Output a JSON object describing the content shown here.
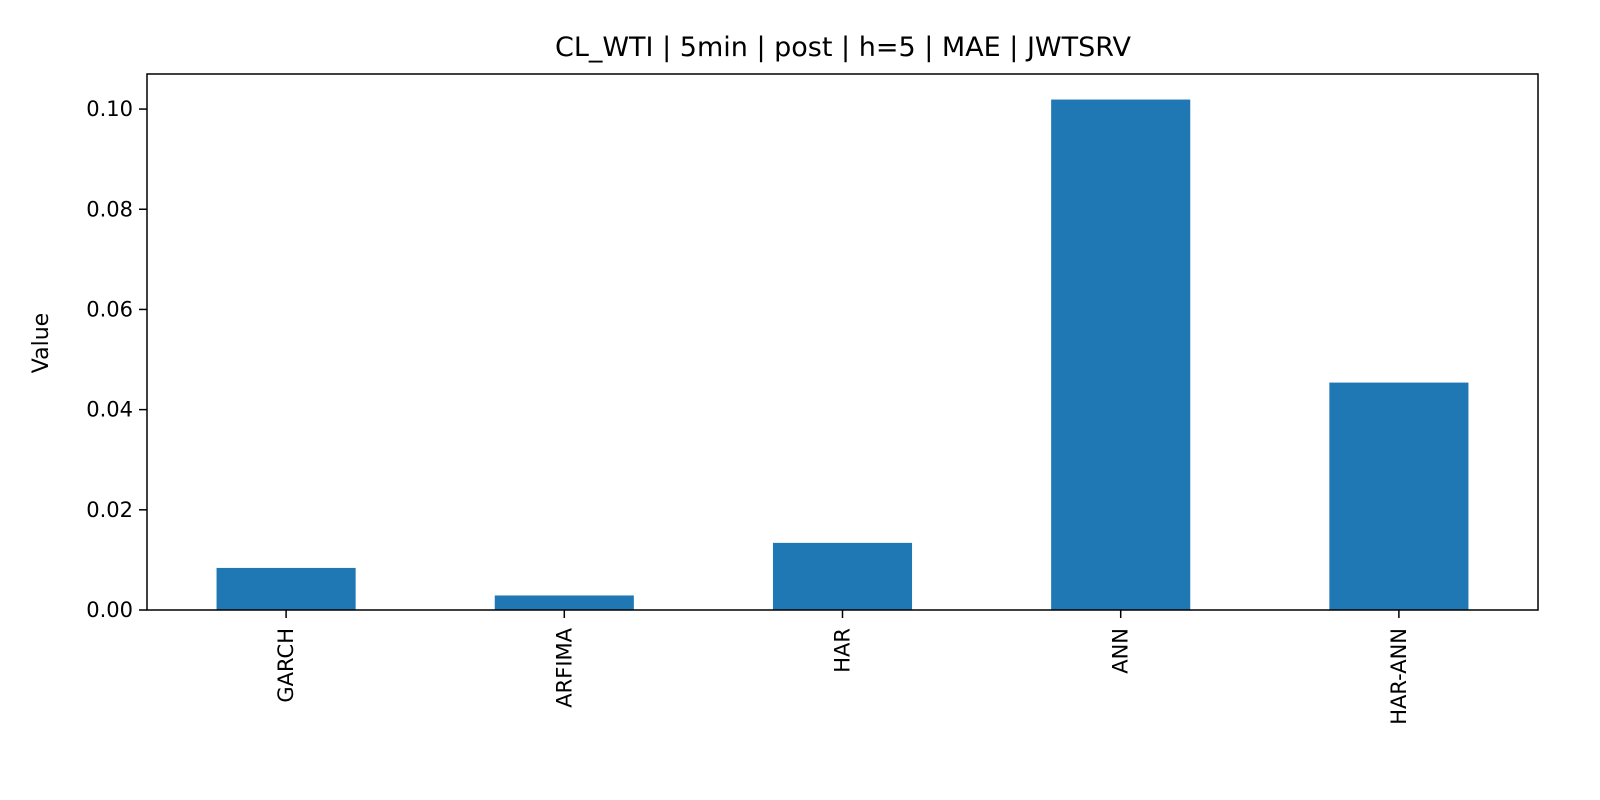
{
  "chart_data": {
    "type": "bar",
    "title": "CL_WTI | 5min | post | h=5 | MAE | JWTSRV",
    "xlabel": "",
    "ylabel": "Value",
    "categories": [
      "GARCH",
      "ARFIMA",
      "HAR",
      "ANN",
      "HAR-ANN"
    ],
    "values": [
      0.0084,
      0.0029,
      0.0134,
      0.1019,
      0.0454
    ],
    "ylim": [
      0,
      0.107
    ],
    "yticks": [
      0.0,
      0.02,
      0.04,
      0.06,
      0.08,
      0.1
    ],
    "ytick_labels": [
      "0.00",
      "0.02",
      "0.04",
      "0.06",
      "0.08",
      "0.10"
    ],
    "grid": false,
    "legend": "none",
    "bar_color": "#1f77b4"
  }
}
